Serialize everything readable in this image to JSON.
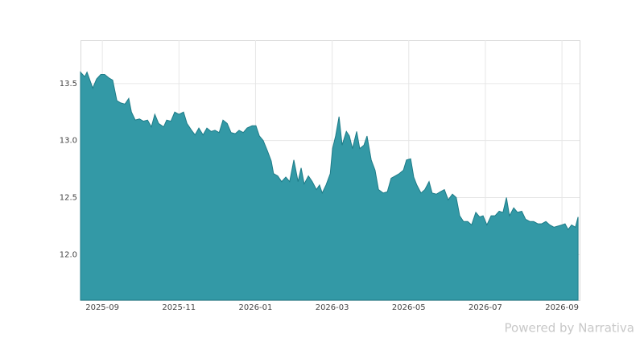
{
  "chart_data": {
    "type": "area",
    "color": "#3399a6",
    "line_color": "#1e7c88",
    "grid": true,
    "xlim": [
      -0.57,
      12.46
    ],
    "ylim": [
      11.6,
      13.88
    ],
    "xticks": [
      {
        "value": 0,
        "label": "2025-09"
      },
      {
        "value": 2,
        "label": "2025-11"
      },
      {
        "value": 4,
        "label": "2026-01"
      },
      {
        "value": 6,
        "label": "2026-03"
      },
      {
        "value": 8,
        "label": "2026-05"
      },
      {
        "value": 10,
        "label": "2026-07"
      },
      {
        "value": 12,
        "label": "2026-09"
      }
    ],
    "yticks": [
      {
        "value": 12,
        "label": "12.0"
      },
      {
        "value": 12.5,
        "label": "12.5"
      },
      {
        "value": 13,
        "label": "13.0"
      },
      {
        "value": 13.5,
        "label": "13.5"
      }
    ],
    "x": [
      -0.57,
      -0.46,
      -0.4,
      -0.25,
      -0.15,
      -0.04,
      0.06,
      0.17,
      0.27,
      0.38,
      0.48,
      0.59,
      0.69,
      0.76,
      0.86,
      0.97,
      1.07,
      1.18,
      1.28,
      1.37,
      1.47,
      1.6,
      1.68,
      1.79,
      1.89,
      2.0,
      2.12,
      2.21,
      2.33,
      2.42,
      2.52,
      2.63,
      2.73,
      2.84,
      2.94,
      3.05,
      3.15,
      3.26,
      3.36,
      3.47,
      3.57,
      3.68,
      3.78,
      3.91,
      4.01,
      4.1,
      4.2,
      4.31,
      4.41,
      4.47,
      4.58,
      4.68,
      4.79,
      4.89,
      5.0,
      5.11,
      5.19,
      5.27,
      5.38,
      5.48,
      5.59,
      5.67,
      5.74,
      5.84,
      5.95,
      6.01,
      6.09,
      6.18,
      6.26,
      6.37,
      6.45,
      6.53,
      6.64,
      6.72,
      6.83,
      6.91,
      7.02,
      7.12,
      7.21,
      7.33,
      7.44,
      7.54,
      7.65,
      7.75,
      7.86,
      7.94,
      8.05,
      8.13,
      8.21,
      8.32,
      8.42,
      8.53,
      8.61,
      8.72,
      8.82,
      8.93,
      9.03,
      9.14,
      9.24,
      9.33,
      9.43,
      9.54,
      9.64,
      9.75,
      9.85,
      9.94,
      10.04,
      10.15,
      10.25,
      10.36,
      10.46,
      10.55,
      10.63,
      10.74,
      10.84,
      10.95,
      11.05,
      11.16,
      11.26,
      11.37,
      11.47,
      11.58,
      11.68,
      11.79,
      11.89,
      12.0,
      12.08,
      12.16,
      12.25,
      12.35,
      12.42
    ],
    "values": [
      13.6,
      13.56,
      13.6,
      13.46,
      13.54,
      13.58,
      13.58,
      13.55,
      13.53,
      13.35,
      13.33,
      13.32,
      13.37,
      13.25,
      13.18,
      13.19,
      13.17,
      13.18,
      13.12,
      13.23,
      13.15,
      13.12,
      13.18,
      13.17,
      13.25,
      13.23,
      13.25,
      13.15,
      13.09,
      13.05,
      13.11,
      13.05,
      13.11,
      13.08,
      13.09,
      13.07,
      13.18,
      13.15,
      13.07,
      13.06,
      13.09,
      13.07,
      13.11,
      13.13,
      13.13,
      13.04,
      13.0,
      12.91,
      12.82,
      12.71,
      12.69,
      12.64,
      12.68,
      12.64,
      12.83,
      12.64,
      12.76,
      12.62,
      12.69,
      12.64,
      12.57,
      12.61,
      12.54,
      12.61,
      12.71,
      12.93,
      13.04,
      13.21,
      12.96,
      13.08,
      13.04,
      12.93,
      13.08,
      12.93,
      12.96,
      13.04,
      12.83,
      12.74,
      12.57,
      12.54,
      12.55,
      12.67,
      12.69,
      12.71,
      12.74,
      12.83,
      12.84,
      12.68,
      12.61,
      12.54,
      12.57,
      12.64,
      12.54,
      12.53,
      12.55,
      12.57,
      12.48,
      12.53,
      12.5,
      12.34,
      12.29,
      12.29,
      12.26,
      12.37,
      12.33,
      12.34,
      12.26,
      12.34,
      12.34,
      12.38,
      12.37,
      12.5,
      12.34,
      12.41,
      12.37,
      12.38,
      12.31,
      12.29,
      12.29,
      12.27,
      12.27,
      12.29,
      12.26,
      12.24,
      12.25,
      12.26,
      12.27,
      12.22,
      12.26,
      12.24,
      12.33
    ]
  },
  "footer": "Powered by Narrativa"
}
